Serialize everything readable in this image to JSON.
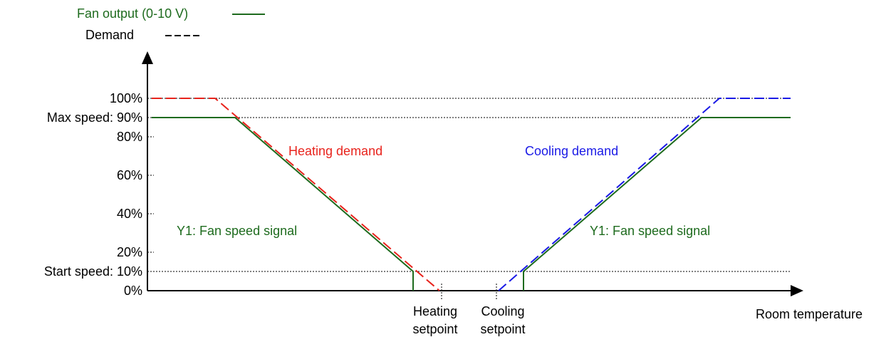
{
  "legend": {
    "fan_output": "Fan output (0-10 V)",
    "demand": "Demand"
  },
  "y_axis": {
    "ticks": [
      "100%",
      "Max speed: 90%",
      "80%",
      "60%",
      "40%",
      "20%",
      "Start speed: 10%",
      "0%"
    ]
  },
  "annotations": {
    "heating_demand": "Heating demand",
    "cooling_demand": "Cooling demand",
    "fan_signal_left": "Y1: Fan speed signal",
    "fan_signal_right": "Y1: Fan speed signal"
  },
  "x_axis": {
    "heating_setpoint": [
      "Heating",
      "setpoint"
    ],
    "cooling_setpoint": [
      "Cooling",
      "setpoint"
    ],
    "label": "Room temperature"
  }
}
